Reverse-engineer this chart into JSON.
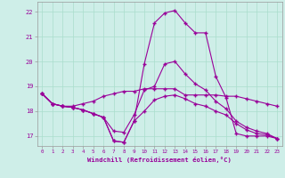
{
  "xlabel": "Windchill (Refroidissement éolien,°C)",
  "background_color": "#ceeee8",
  "grid_color": "#aaddcc",
  "line_color": "#990099",
  "ylim": [
    16.6,
    22.4
  ],
  "yticks": [
    17,
    18,
    19,
    20,
    21,
    22
  ],
  "xticks": [
    0,
    1,
    2,
    3,
    4,
    5,
    6,
    7,
    8,
    9,
    10,
    11,
    12,
    13,
    14,
    15,
    16,
    17,
    18,
    19,
    20,
    21,
    22,
    23
  ],
  "line1_x": [
    0,
    1,
    2,
    3,
    4,
    5,
    6,
    7,
    8,
    9,
    10,
    11,
    12,
    13,
    14,
    15,
    16,
    17,
    18,
    19,
    20,
    21,
    22,
    23
  ],
  "line1": [
    18.7,
    18.3,
    18.2,
    18.2,
    18.3,
    18.4,
    18.6,
    18.7,
    18.8,
    18.8,
    18.9,
    18.9,
    18.9,
    18.9,
    18.65,
    18.65,
    18.65,
    18.65,
    18.6,
    18.6,
    18.5,
    18.4,
    18.3,
    18.2
  ],
  "line2_x": [
    0,
    1,
    2,
    3,
    4,
    5,
    6,
    7,
    8,
    9,
    10,
    11,
    12,
    13,
    14,
    15,
    16,
    17,
    18,
    19,
    20,
    21,
    22,
    23
  ],
  "line2": [
    18.7,
    18.3,
    18.2,
    18.15,
    18.05,
    17.9,
    17.75,
    16.8,
    16.75,
    17.6,
    19.9,
    21.55,
    21.95,
    22.05,
    21.55,
    21.15,
    21.15,
    19.4,
    18.55,
    17.1,
    17.0,
    17.0,
    17.0,
    16.9
  ],
  "line3_x": [
    0,
    1,
    2,
    3,
    4,
    5,
    6,
    7,
    8,
    9,
    10,
    11,
    12,
    13,
    14,
    15,
    16,
    17,
    18,
    19,
    20,
    21,
    22,
    23
  ],
  "line3": [
    18.7,
    18.3,
    18.2,
    18.15,
    18.05,
    17.9,
    17.75,
    17.2,
    17.15,
    17.85,
    18.85,
    19.0,
    19.9,
    20.0,
    19.5,
    19.1,
    18.85,
    18.4,
    18.1,
    17.6,
    17.35,
    17.2,
    17.1,
    16.9
  ],
  "line4_x": [
    0,
    1,
    2,
    3,
    4,
    5,
    6,
    7,
    8,
    9,
    10,
    11,
    12,
    13,
    14,
    15,
    16,
    17,
    18,
    19,
    20,
    21,
    22,
    23
  ],
  "line4": [
    18.7,
    18.3,
    18.2,
    18.15,
    18.05,
    17.9,
    17.75,
    16.8,
    16.75,
    17.6,
    18.0,
    18.45,
    18.6,
    18.65,
    18.5,
    18.3,
    18.2,
    18.0,
    17.85,
    17.5,
    17.25,
    17.1,
    17.05,
    16.9
  ]
}
